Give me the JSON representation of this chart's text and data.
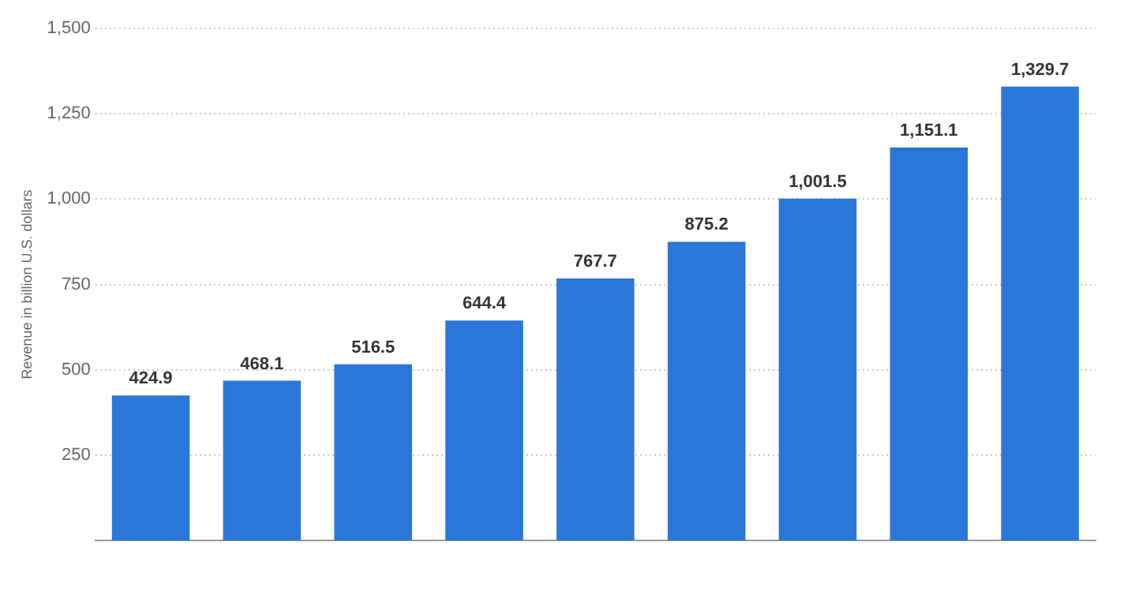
{
  "chart_data": {
    "type": "bar",
    "ylabel": "Revenue in billion U.S. dollars",
    "categories": [
      null,
      null,
      null,
      null,
      null,
      null,
      null,
      null,
      null
    ],
    "values": [
      424.9,
      468.1,
      516.5,
      644.4,
      767.7,
      875.2,
      1001.5,
      1151.1,
      1329.7
    ],
    "value_labels": [
      "424.9",
      "468.1",
      "516.5",
      "644.4",
      "767.7",
      "875.2",
      "1,001.5",
      "1,151.1",
      "1,329.7"
    ],
    "color": "#2a77d9",
    "ylim": [
      0,
      1500
    ],
    "yticks": [
      250,
      500,
      750,
      {
        "value": 1000,
        "label": "1,000"
      },
      {
        "value": 1250,
        "label": "1,250"
      },
      {
        "value": 1500,
        "label": "1,500"
      }
    ],
    "grid": "y"
  }
}
